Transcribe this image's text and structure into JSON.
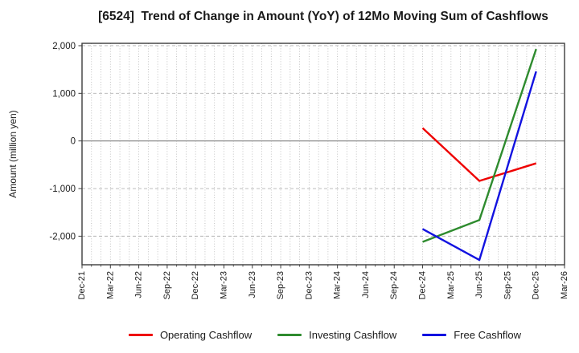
{
  "title": "[6524]  Trend of Change in Amount (YoY) of 12Mo Moving Sum of Cashflows",
  "chart_data": {
    "type": "line",
    "title": "[6524]  Trend of Change in Amount (YoY) of 12Mo Moving Sum of Cashflows",
    "xlabel": "",
    "ylabel": "Amount (million yen)",
    "x_tick_labels": [
      "Dec-21",
      "Mar-22",
      "Jun-22",
      "Sep-22",
      "Dec-22",
      "Mar-23",
      "Jun-23",
      "Sep-23",
      "Dec-23",
      "Mar-24",
      "Jun-24",
      "Sep-24",
      "Dec-24",
      "Mar-25",
      "Jun-25",
      "Sep-25",
      "Dec-25",
      "Mar-26"
    ],
    "months_per_major_tick": 3,
    "y_ticks": [
      2000,
      1000,
      0,
      -1000,
      -2000
    ],
    "y_tick_labels": [
      "2,000",
      "1,000",
      "0",
      "-1,000",
      "-2,000"
    ],
    "ylim": [
      -2600,
      2050
    ],
    "grid": true,
    "legend_position": "bottom",
    "units": "million yen",
    "series": [
      {
        "name": "Operating Cashflow",
        "color": "#ee0000",
        "points": [
          {
            "x": "Dec-24",
            "y": 270
          },
          {
            "x": "Jun-25",
            "y": -840
          },
          {
            "x": "Dec-25",
            "y": -470
          }
        ]
      },
      {
        "name": "Investing Cashflow",
        "color": "#2e8b2e",
        "points": [
          {
            "x": "Dec-24",
            "y": -2120
          },
          {
            "x": "Jun-25",
            "y": -1660
          },
          {
            "x": "Dec-25",
            "y": 1930
          }
        ]
      },
      {
        "name": "Free Cashflow",
        "color": "#1212e0",
        "points": [
          {
            "x": "Dec-24",
            "y": -1850
          },
          {
            "x": "Jun-25",
            "y": -2500
          },
          {
            "x": "Dec-25",
            "y": 1460
          }
        ]
      }
    ],
    "colors": {
      "grid_minor": "#b3b3b3",
      "grid_major": "#b3b3b3",
      "zero_line": "#808080",
      "border": "#3c3c3c",
      "tick_text": "#1a1a1a"
    }
  },
  "legend": {
    "items": [
      {
        "label": "Operating Cashflow"
      },
      {
        "label": "Investing Cashflow"
      },
      {
        "label": "Free Cashflow"
      }
    ]
  }
}
